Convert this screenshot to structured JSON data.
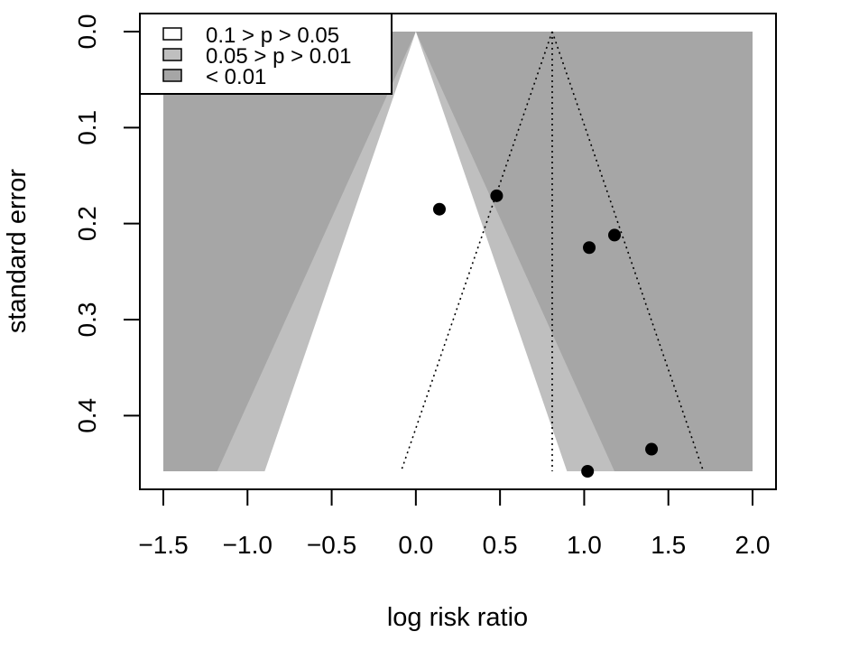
{
  "chart_data": {
    "type": "scatter",
    "subtype": "contour-enhanced funnel plot",
    "title": "",
    "xlabel": "log risk ratio",
    "ylabel": "standard error",
    "xlim": [
      -1.5,
      2.0
    ],
    "ylim": [
      0.0,
      0.458
    ],
    "y_reversed": true,
    "x_ticks": [
      -1.5,
      -1.0,
      -0.5,
      0.0,
      0.5,
      1.0,
      1.5,
      2.0
    ],
    "x_tick_labels": [
      "−1.5",
      "−1.0",
      "−0.5",
      "0.0",
      "0.5",
      "1.0",
      "1.5",
      "2.0"
    ],
    "y_ticks": [
      0.0,
      0.1,
      0.2,
      0.3,
      0.4
    ],
    "y_tick_labels": [
      "0.0",
      "0.1",
      "0.2",
      "0.3",
      "0.4"
    ],
    "contour_center": 0.0,
    "contours": [
      {
        "label": "0.1 > p > 0.05",
        "z": 1.645,
        "color": "#ffffff"
      },
      {
        "label": "0.05 > p > 0.01",
        "z": 1.96,
        "color": "#bfbfbf"
      },
      {
        "label": "< 0.01",
        "z": 2.576,
        "color": "#a6a6a6"
      }
    ],
    "summary_estimate": 0.81,
    "funnel_z": 1.96,
    "points": [
      {
        "x": 0.14,
        "y": 0.185
      },
      {
        "x": 0.48,
        "y": 0.171
      },
      {
        "x": 1.03,
        "y": 0.225
      },
      {
        "x": 1.18,
        "y": 0.212
      },
      {
        "x": 1.4,
        "y": 0.435
      },
      {
        "x": 1.02,
        "y": 0.458
      }
    ],
    "legend": {
      "position": "top-left",
      "entries": [
        "0.1 > p > 0.05",
        "0.05 > p > 0.01",
        "< 0.01"
      ]
    }
  }
}
